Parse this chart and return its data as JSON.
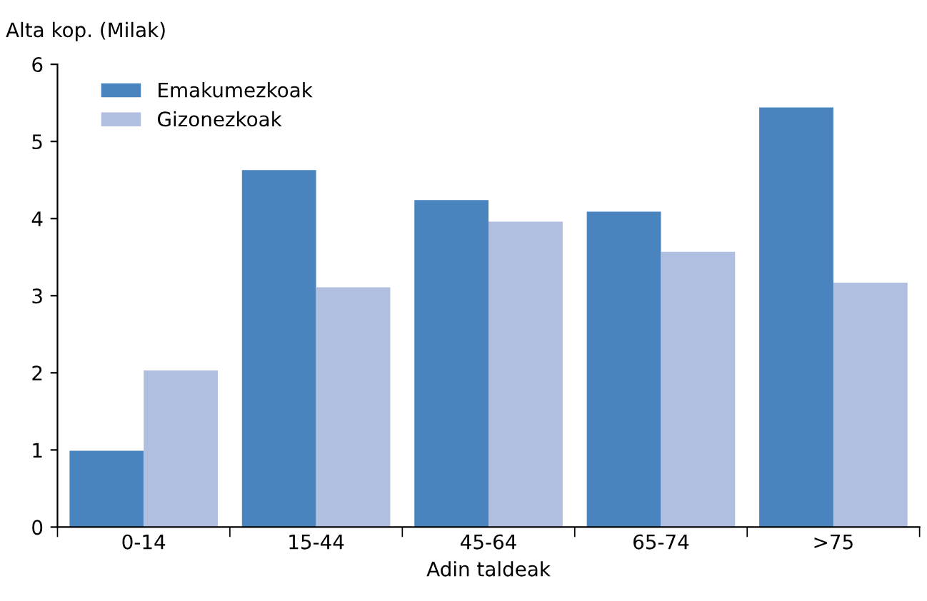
{
  "chart_data": {
    "type": "bar",
    "xlabel": "Adin taldeak",
    "ylabel": "Alta kop. (Milak)",
    "categories": [
      "0-14",
      "15-44",
      "45-64",
      "65-74",
      ">75"
    ],
    "series": [
      {
        "name": "Emakumezkoak",
        "color": "#4a84bf",
        "values": [
          0.99,
          4.63,
          4.24,
          4.09,
          5.44
        ]
      },
      {
        "name": "Gizonezkoak",
        "color": "#b0bfdf",
        "values": [
          2.03,
          3.11,
          3.96,
          3.57,
          3.17
        ]
      }
    ],
    "ylim": [
      0,
      6
    ],
    "yticks": [
      0,
      1,
      2,
      3,
      4,
      5,
      6
    ],
    "grid": false,
    "legend": "top left"
  }
}
